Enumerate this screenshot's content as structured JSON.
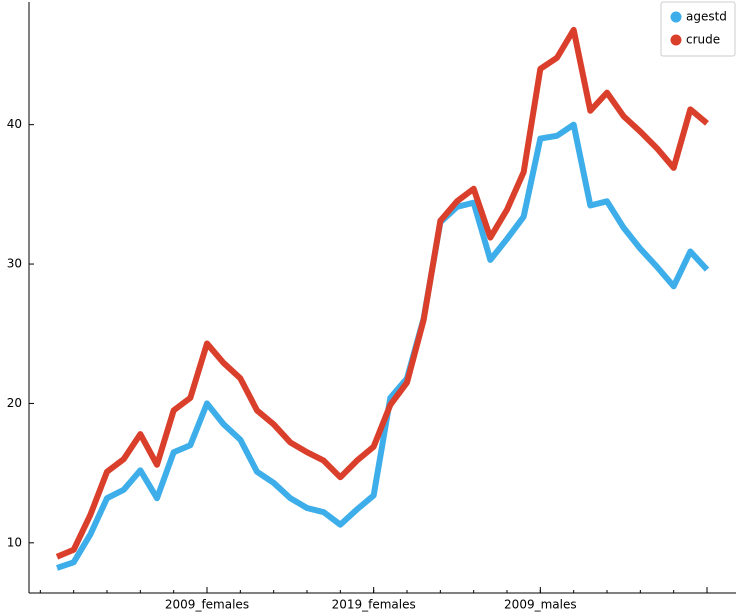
{
  "chart_data": {
    "type": "line",
    "categories": [
      null,
      null,
      null,
      null,
      null,
      null,
      null,
      null,
      null,
      "2009_females",
      null,
      null,
      null,
      null,
      null,
      null,
      null,
      null,
      null,
      "2019_females",
      null,
      null,
      null,
      null,
      null,
      null,
      null,
      null,
      null,
      "2009_males",
      null,
      null,
      null,
      null,
      null,
      null,
      null,
      null,
      null,
      null
    ],
    "series": [
      {
        "name": "agestd",
        "color": "#3daee9",
        "values": [
          8.2,
          8.6,
          10.6,
          13.2,
          13.8,
          15.2,
          13.2,
          16.5,
          17.0,
          20.0,
          18.5,
          17.4,
          15.1,
          14.3,
          13.2,
          12.5,
          12.2,
          11.3,
          12.4,
          13.4,
          20.4,
          21.8,
          26.1,
          33.0,
          34.1,
          34.4,
          30.3,
          31.8,
          33.4,
          39.0,
          39.2,
          40.0,
          34.2,
          34.5,
          32.6,
          31.1,
          29.8,
          28.4,
          30.9,
          29.6
        ]
      },
      {
        "name": "crude",
        "color": "#da3f2b",
        "values": [
          9.0,
          9.5,
          12.0,
          15.1,
          16.0,
          17.8,
          15.6,
          19.5,
          20.4,
          24.3,
          22.9,
          21.8,
          19.5,
          18.5,
          17.2,
          16.5,
          15.9,
          14.7,
          15.9,
          16.9,
          19.9,
          21.5,
          26.0,
          33.1,
          34.5,
          35.4,
          31.9,
          33.9,
          36.6,
          44.0,
          44.8,
          46.8,
          41.0,
          42.3,
          40.6,
          39.5,
          38.3,
          36.9,
          41.1,
          40.1
        ]
      }
    ],
    "ylim": [
      6.4,
      48.8
    ],
    "yticks": [
      10,
      20,
      30,
      40
    ],
    "legend": "upper right"
  }
}
